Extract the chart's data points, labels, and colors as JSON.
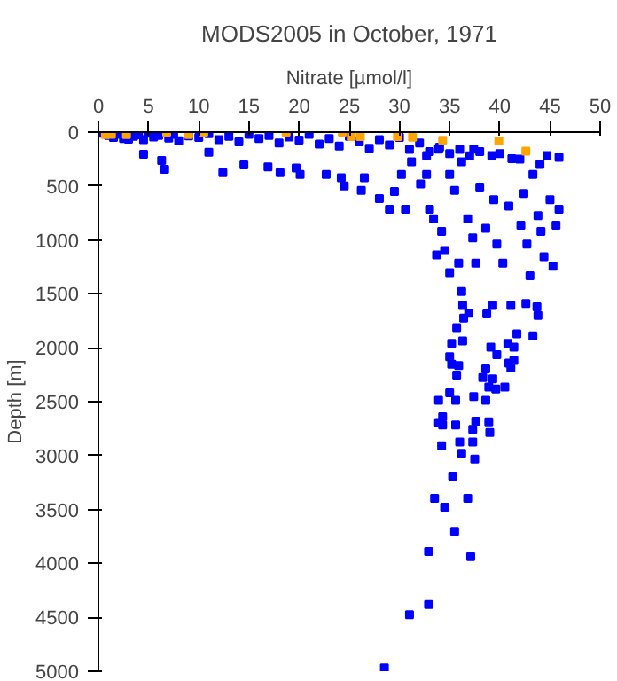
{
  "chart_data": {
    "type": "scatter",
    "title": "MODS2005 in October, 1971",
    "xlabel": "Nitrate [µmol/l]",
    "ylabel": "Depth [m]",
    "marker": "square",
    "grid": false,
    "xlim": [
      0,
      50
    ],
    "xticks": [
      0,
      5,
      10,
      15,
      20,
      25,
      30,
      35,
      40,
      45,
      50
    ],
    "ylim": [
      5000,
      0
    ],
    "yticks": [
      0,
      500,
      1000,
      1500,
      2000,
      2500,
      3000,
      3500,
      4000,
      4500,
      5000
    ],
    "series": [
      {
        "color": "#0000ff",
        "x": [
          0.5,
          1,
          1.5,
          2,
          2.5,
          3,
          3.5,
          4,
          4.5,
          5,
          5.5,
          6,
          7,
          7.5,
          8,
          9,
          10,
          11,
          12,
          13,
          14,
          15,
          16,
          17,
          18,
          19,
          20,
          21,
          22,
          23,
          24,
          25,
          26,
          27,
          28,
          29,
          30,
          31,
          32,
          33,
          34,
          35,
          36,
          37,
          38,
          40,
          42,
          44,
          4.5,
          6.6,
          6.3,
          11.0,
          12.4,
          14.5,
          16.9,
          18.1,
          19.7,
          20.1,
          22.7,
          24.2,
          24.5,
          26.5,
          26.2,
          28.0,
          29.5,
          30.2,
          29.0,
          30.6,
          31.2,
          32.1,
          32.7,
          33.0,
          33.4,
          34.2,
          34.5,
          33.7,
          35.0,
          35.9,
          36.2,
          36.8,
          37.3,
          37.6,
          38.0,
          38.6,
          39.2,
          39.4,
          39.7,
          40.3,
          40.9,
          41.2,
          42.1,
          42.4,
          42.7,
          43.0,
          43.3,
          43.8,
          44.1,
          44.4,
          44.7,
          45.0,
          45.3,
          45.6,
          45.9,
          45.9,
          35.5,
          35.0,
          32.7,
          33.9,
          37.4,
          36.2,
          36.3,
          39.3,
          41.1,
          42.6,
          43.7,
          43.8,
          36.9,
          38.7,
          36.4,
          35.7,
          41.7,
          43.3,
          35.2,
          36.3,
          39.1,
          40.8,
          41.4,
          35.0,
          39.7,
          41.4,
          35.2,
          35.9,
          38.6,
          40.9,
          41.1,
          35.7,
          38.3,
          39.3,
          38.9,
          39.6,
          40.5,
          35.0,
          33.9,
          35.6,
          37.4,
          38.6,
          34.3,
          33.9,
          34.3,
          35.6,
          37.3,
          37.6,
          38.9,
          39.0,
          34.2,
          36.0,
          37.3,
          36.2,
          37.5,
          35.3,
          33.5,
          36.8,
          34.5,
          35.5,
          32.9,
          37.1,
          32.9,
          31.0,
          28.5
        ],
        "values": [
          10,
          30,
          50,
          20,
          60,
          65,
          40,
          25,
          70,
          10,
          45,
          30,
          55,
          20,
          80,
          35,
          50,
          15,
          70,
          40,
          90,
          20,
          60,
          30,
          100,
          45,
          75,
          20,
          110,
          60,
          130,
          40,
          90,
          150,
          70,
          120,
          50,
          160,
          100,
          180,
          140,
          200,
          160,
          220,
          180,
          200,
          250,
          300,
          205,
          346,
          264,
          188,
          376,
          305,
          323,
          376,
          334,
          393,
          393,
          423,
          499,
          423,
          540,
          616,
          552,
          393,
          716,
          716,
          276,
          481,
          393,
          716,
          804,
          921,
          1098,
          1139,
          1303,
          1215,
          1479,
          804,
          980,
          1215,
          510,
          892,
          217,
          628,
          1039,
          1215,
          687,
          246,
          863,
          569,
          1039,
          1332,
          393,
          775,
          921,
          1156,
          217,
          628,
          1244,
          863,
          235,
          716,
          540,
          393,
          217,
          158,
          158,
          276,
          1607,
          1607,
          1607,
          1590,
          1620,
          1700,
          1680,
          1685,
          1725,
          1813,
          1871,
          1890,
          1960,
          1936,
          1995,
          1960,
          1995,
          2083,
          2065,
          2118,
          2153,
          2165,
          2195,
          2142,
          2188,
          2253,
          2276,
          2288,
          2364,
          2382,
          2364,
          2417,
          2487,
          2487,
          2452,
          2487,
          2640,
          2693,
          2716,
          2716,
          2758,
          2680,
          2687,
          2786,
          2909,
          2874,
          2874,
          2980,
          3033,
          3191,
          3397,
          3397,
          3479,
          3702,
          3890,
          3937,
          4382,
          4476,
          4969
        ]
      },
      {
        "color": "#ffa500",
        "x": [
          0.7,
          1.3,
          2.8,
          6.8,
          9.0,
          10.5,
          18.7,
          24.3,
          25.2,
          26.1,
          29.8,
          31.3,
          34.3,
          39.9,
          42.6
        ],
        "values": [
          23,
          20,
          23,
          0,
          23,
          0,
          0,
          0,
          41,
          41,
          41,
          47,
          76,
          82,
          176
        ]
      }
    ]
  }
}
